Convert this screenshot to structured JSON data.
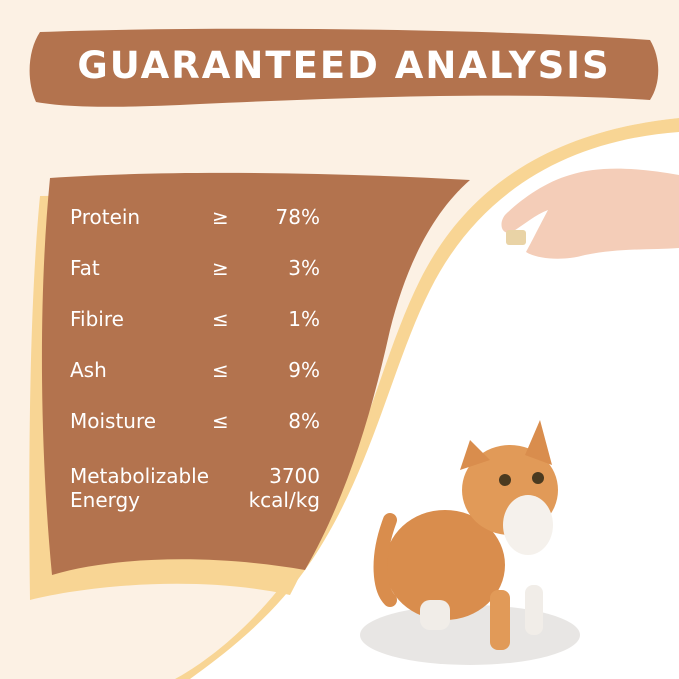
{
  "title": "GUARANTEED ANALYSIS",
  "colors": {
    "background": "#fcf1e4",
    "brown": "#b3734e",
    "yellow": "#f8d594",
    "white": "#ffffff"
  },
  "analysis": [
    {
      "name": "Protein",
      "operator": "≥",
      "value": "78%"
    },
    {
      "name": "Fat",
      "operator": "≥",
      "value": "3%"
    },
    {
      "name": "Fibire",
      "operator": "≤",
      "value": "1%"
    },
    {
      "name": "Ash",
      "operator": "≤",
      "value": "9%"
    },
    {
      "name": "Moisture",
      "operator": "≤",
      "value": "8%"
    }
  ],
  "energy": {
    "label_line1": "Metabolizable",
    "label_line2": "Energy",
    "value_line1": "3700",
    "value_line2": "kcal/kg"
  },
  "images": [
    "hand-holding-treat",
    "orange-kitten-looking-up"
  ]
}
